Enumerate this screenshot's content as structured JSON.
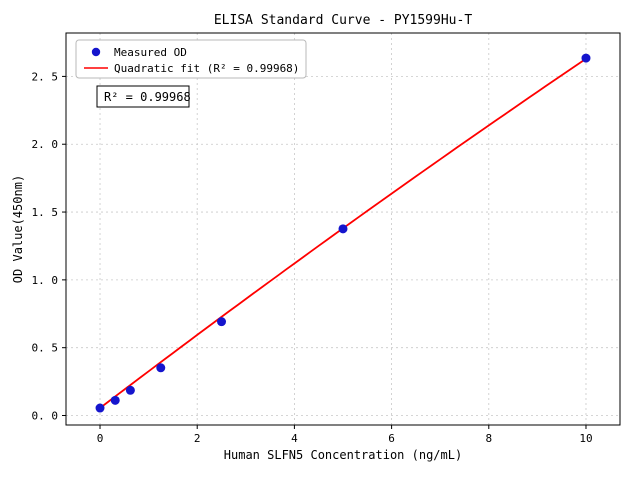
{
  "chart_data": {
    "type": "scatter",
    "title": "ELISA Standard Curve - PY1599Hu-T",
    "xlabel": "Human SLFN5 Concentration (ng/mL)",
    "ylabel": "OD Value(450nm)",
    "series": [
      {
        "name": "Measured OD",
        "type": "scatter",
        "color": "#1515cd",
        "x": [
          0,
          0.313,
          0.625,
          1.25,
          2.5,
          5,
          10
        ],
        "y": [
          0.055,
          0.112,
          0.186,
          0.352,
          0.692,
          1.376,
          2.635
        ]
      },
      {
        "name": "Quadratic fit (R² = 0.99968)",
        "type": "line",
        "color": "#ff0000",
        "fit_coefficients": {
          "a": 0.055,
          "b": 0.2725,
          "c": -0.0015
        },
        "x_range": [
          0,
          10
        ]
      }
    ],
    "annotation": "R² = 0.99968",
    "xlim": [
      -0.7,
      10.7
    ],
    "ylim": [
      -0.07,
      2.82
    ],
    "xticks": {
      "values": [
        0,
        2,
        4,
        6,
        8,
        10
      ],
      "labels": [
        "0",
        "2",
        "4",
        "6",
        "8",
        "10"
      ]
    },
    "yticks": {
      "values": [
        0,
        0.5,
        1.0,
        1.5,
        2.0,
        2.5
      ],
      "labels": [
        "0. 0",
        "0. 5",
        "1. 0",
        "1. 5",
        "2. 0",
        "2. 5"
      ]
    },
    "grid": true,
    "legend_position": "upper left",
    "grid_color": "#c8c8c8",
    "spine_color": "#000000"
  }
}
